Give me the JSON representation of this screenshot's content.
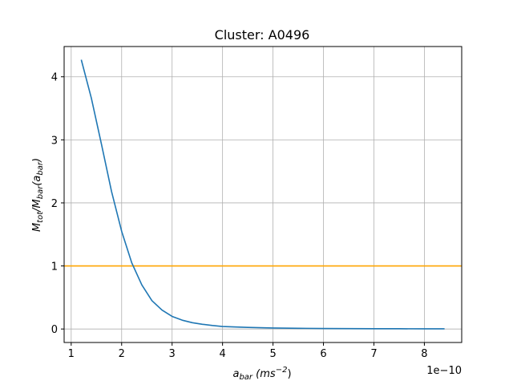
{
  "chart_data": {
    "type": "line",
    "title": "Cluster: A0496",
    "xlabel": {
      "base": "a",
      "sub": "bar",
      "unit_pre": " (ms",
      "unit_sup": "−2",
      "unit_post": ")"
    },
    "ylabel": {
      "p1": "M",
      "p1sub": "tot",
      "p2": "/M",
      "p2sub": "bar",
      "p3": "(a",
      "p3sub": "bar",
      "p4": ")"
    },
    "x_offset_text": "1e−10",
    "xlim": [
      0.86,
      8.74
    ],
    "ylim": [
      -0.214,
      4.48
    ],
    "xticks": [
      1,
      2,
      3,
      4,
      5,
      6,
      7,
      8
    ],
    "xtick_labels": [
      "1",
      "2",
      "3",
      "4",
      "5",
      "6",
      "7",
      "8"
    ],
    "yticks": [
      0,
      1,
      2,
      3,
      4
    ],
    "ytick_labels": [
      "0",
      "1",
      "2",
      "3",
      "4"
    ],
    "grid": true,
    "series": [
      {
        "color": "#1f77b4",
        "x": [
          1.2,
          1.4,
          1.6,
          1.8,
          2.0,
          2.2,
          2.4,
          2.6,
          2.8,
          3.0,
          3.2,
          3.4,
          3.6,
          3.8,
          4.0,
          4.5,
          5.0,
          5.5,
          6.0,
          6.5,
          7.0,
          7.5,
          8.0,
          8.4
        ],
        "y": [
          4.27,
          3.66,
          2.93,
          2.18,
          1.55,
          1.05,
          0.7,
          0.45,
          0.3,
          0.2,
          0.14,
          0.1,
          0.075,
          0.055,
          0.04,
          0.025,
          0.016,
          0.011,
          0.008,
          0.006,
          0.005,
          0.004,
          0.003,
          0.003
        ]
      }
    ],
    "hlines": [
      {
        "y": 1,
        "color": "#ffa500"
      }
    ]
  }
}
